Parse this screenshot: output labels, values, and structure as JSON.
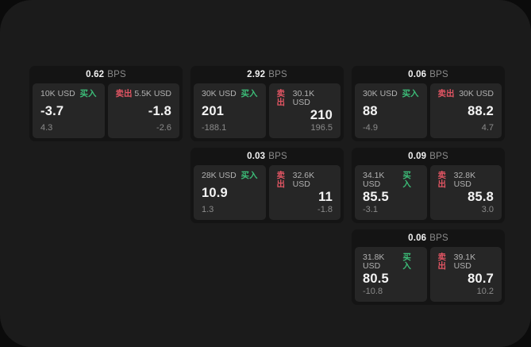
{
  "page": {
    "backdrop_color": "#0b0b0b",
    "panel_color": "#1b1b1b",
    "card_color": "#141414",
    "tile_color": "#262626"
  },
  "colors": {
    "buy_green": "#3cbd78",
    "sell_red": "#e15563",
    "value_white": "#f4f4f4",
    "muted_gray": "#8b8b8b",
    "label_gray": "#b2b2b2"
  },
  "labels": {
    "bps": "BPS",
    "buy": "买入",
    "sell": "卖出"
  },
  "cards": [
    {
      "bps": "0.62",
      "buy": {
        "amount": "10K USD",
        "value": "-3.7",
        "delta": "4.3"
      },
      "sell": {
        "amount": "5.5K USD",
        "value": "-1.8",
        "delta": "-2.6"
      }
    },
    {
      "bps": "2.92",
      "buy": {
        "amount": "30K USD",
        "value": "201",
        "delta": "-188.1"
      },
      "sell": {
        "amount": "30.1K USD",
        "value": "210",
        "delta": "196.5"
      }
    },
    {
      "bps": "0.06",
      "buy": {
        "amount": "30K USD",
        "value": "88",
        "delta": "-4.9"
      },
      "sell": {
        "amount": "30K USD",
        "value": "88.2",
        "delta": "4.7"
      }
    },
    {
      "bps": "0.03",
      "buy": {
        "amount": "28K USD",
        "value": "10.9",
        "delta": "1.3"
      },
      "sell": {
        "amount": "32.6K USD",
        "value": "11",
        "delta": "-1.8"
      }
    },
    {
      "bps": "0.09",
      "buy": {
        "amount": "34.1K USD",
        "value": "85.5",
        "delta": "-3.1"
      },
      "sell": {
        "amount": "32.8K USD",
        "value": "85.8",
        "delta": "3.0"
      }
    },
    {
      "bps": "0.06",
      "buy": {
        "amount": "31.8K USD",
        "value": "80.5",
        "delta": "-10.8"
      },
      "sell": {
        "amount": "39.1K USD",
        "value": "80.7",
        "delta": "10.2"
      }
    }
  ]
}
